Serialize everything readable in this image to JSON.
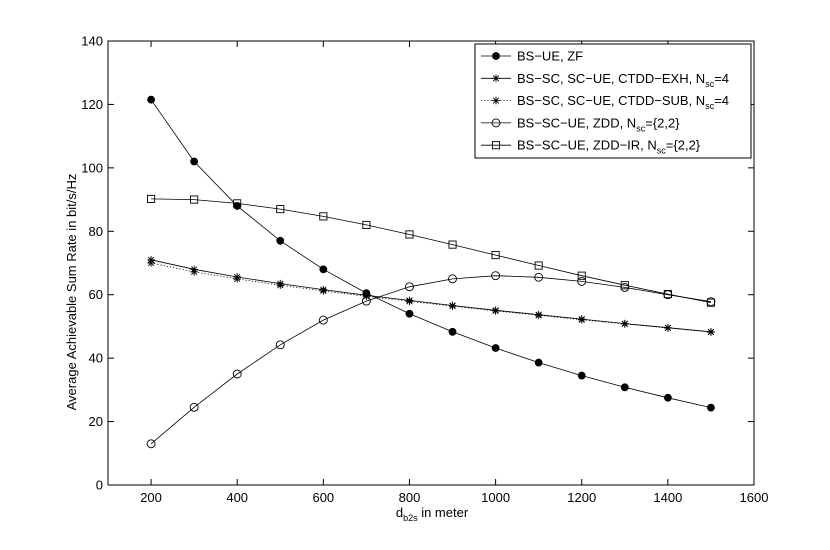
{
  "chart_data": {
    "type": "line",
    "title": "",
    "xlabel": {
      "main": "d",
      "sub": "b2s",
      "rest": " in meter"
    },
    "ylabel": "Average Achievable Sum Rate in bit/s/Hz",
    "xlim": [
      100,
      1600
    ],
    "ylim": [
      0,
      140
    ],
    "xticks": [
      200,
      400,
      600,
      800,
      1000,
      1200,
      1400,
      1600
    ],
    "yticks": [
      0,
      20,
      40,
      60,
      80,
      100,
      120,
      140
    ],
    "grid": false,
    "legend_position": "top-right",
    "x": [
      200,
      300,
      400,
      500,
      600,
      700,
      800,
      900,
      1000,
      1100,
      1200,
      1300,
      1400,
      1500
    ],
    "series": [
      {
        "name": "BS−UE, ZF",
        "legend_parts": [
          {
            "t": "BS−UE, ZF"
          }
        ],
        "marker": "filled-circle",
        "line": "solid",
        "values": [
          121.5,
          102,
          88,
          77,
          68,
          60.5,
          54,
          48.3,
          43.2,
          38.6,
          34.5,
          30.8,
          27.5,
          24.4
        ]
      },
      {
        "name": "BS−SC, SC−UE, CTDD−EXH, N_sc=4",
        "legend_parts": [
          {
            "t": "BS−SC, SC−UE, CTDD−EXH, N"
          },
          {
            "t": "sc",
            "sub": true
          },
          {
            "t": "=4"
          }
        ],
        "marker": "star",
        "line": "solid",
        "values": [
          71,
          68,
          65.6,
          63.5,
          61.6,
          59.8,
          58.2,
          56.6,
          55.1,
          53.7,
          52.3,
          50.9,
          49.6,
          48.3
        ]
      },
      {
        "name": "BS−SC, SC−UE, CTDD−SUB, N_sc=4",
        "legend_parts": [
          {
            "t": "BS−SC, SC−UE, CTDD−SUB, N"
          },
          {
            "t": "sc",
            "sub": true
          },
          {
            "t": "=4"
          }
        ],
        "marker": "star",
        "line": "dotted",
        "values": [
          70,
          67.2,
          65,
          63,
          61.2,
          59.5,
          57.9,
          56.4,
          54.9,
          53.5,
          52.1,
          50.8,
          49.5,
          48.2
        ]
      },
      {
        "name": "BS−SC−UE, ZDD, N_sc={2,2}",
        "legend_parts": [
          {
            "t": "BS−SC−UE, ZDD, N"
          },
          {
            "t": "sc",
            "sub": true
          },
          {
            "t": "={2,2}"
          }
        ],
        "marker": "open-circle",
        "line": "solid",
        "values": [
          13,
          24.5,
          35,
          44.2,
          52,
          58,
          62.5,
          65,
          66,
          65.5,
          64.2,
          62.3,
          60,
          57.8
        ]
      },
      {
        "name": "BS−SC−UE, ZDD−IR, N_sc={2,2}",
        "legend_parts": [
          {
            "t": "BS−SC−UE, ZDD−IR, N"
          },
          {
            "t": "sc",
            "sub": true
          },
          {
            "t": "={2,2}"
          }
        ],
        "marker": "square",
        "line": "solid",
        "values": [
          90.2,
          90,
          88.8,
          87,
          84.7,
          82,
          79,
          75.8,
          72.5,
          69.2,
          66,
          63,
          60.2,
          57.5
        ]
      }
    ]
  }
}
